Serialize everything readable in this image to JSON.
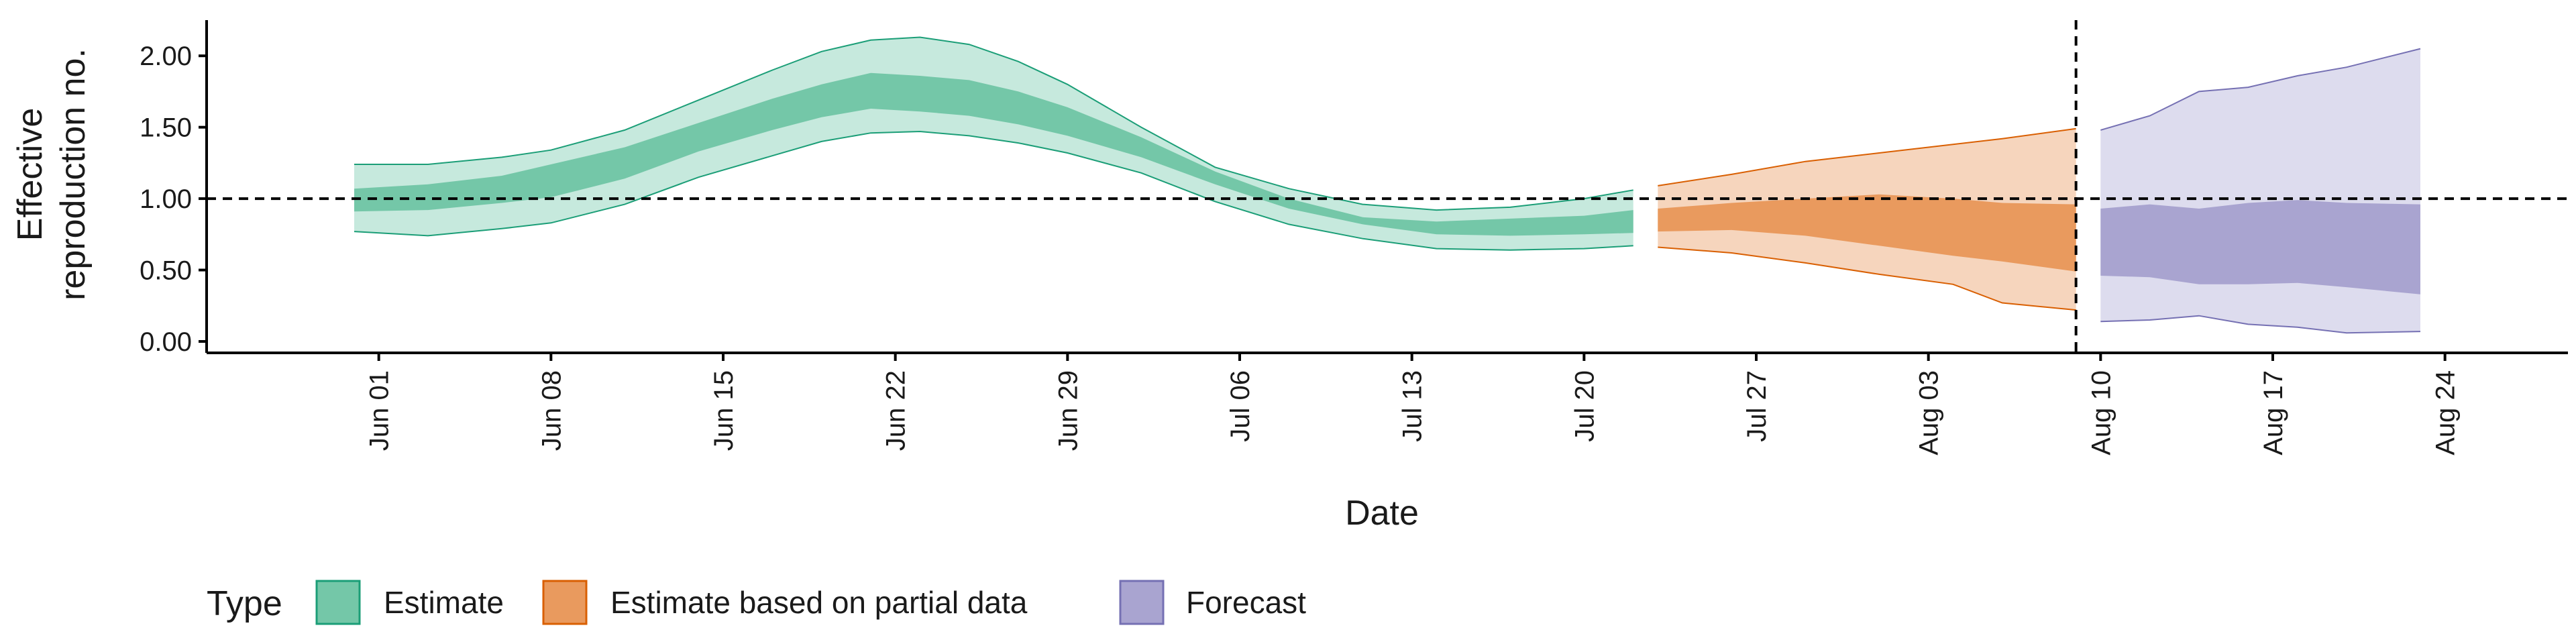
{
  "chart_data": {
    "type": "area",
    "xlabel": "Date",
    "ylabel_lines": [
      "Effective",
      "reproduction no."
    ],
    "x_ticks": [
      "Jun 01",
      "Jun 08",
      "Jun 15",
      "Jun 22",
      "Jun 29",
      "Jul 06",
      "Jul 13",
      "Jul 20",
      "Jul 27",
      "Aug 03",
      "Aug 10",
      "Aug 17",
      "Aug 24"
    ],
    "y_ticks": [
      "0.00",
      "0.50",
      "1.00",
      "1.50",
      "2.00"
    ],
    "ylim": [
      -0.08,
      2.25
    ],
    "xlim": [
      "2020-05-25",
      "2020-08-29"
    ],
    "reference_line_y": 1.0,
    "forecast_start_line": "2020-08-09",
    "legend": {
      "title": "Type",
      "position": "bottom-left",
      "items": [
        {
          "label": "Estimate",
          "fill": "#74c7a8",
          "stroke": "#1b9e77"
        },
        {
          "label": "Estimate based on partial data",
          "fill": "#e99a5e",
          "stroke": "#d95f02"
        },
        {
          "label": "Forecast",
          "fill": "#a9a4d0",
          "stroke": "#7570b3"
        }
      ]
    },
    "series": [
      {
        "name": "Estimate",
        "color": "#1b9e77",
        "outer_fill": "#c6e9dd",
        "inner_fill": "#74c7a8",
        "dates": [
          "2020-05-31",
          "2020-06-03",
          "2020-06-06",
          "2020-06-08",
          "2020-06-11",
          "2020-06-14",
          "2020-06-17",
          "2020-06-19",
          "2020-06-21",
          "2020-06-23",
          "2020-06-25",
          "2020-06-27",
          "2020-06-29",
          "2020-07-02",
          "2020-07-05",
          "2020-07-08",
          "2020-07-11",
          "2020-07-14",
          "2020-07-17",
          "2020-07-20",
          "2020-07-22"
        ],
        "lower_90": [
          0.77,
          0.74,
          0.79,
          0.83,
          0.96,
          1.15,
          1.3,
          1.4,
          1.46,
          1.47,
          1.44,
          1.39,
          1.32,
          1.18,
          0.98,
          0.82,
          0.72,
          0.65,
          0.64,
          0.65,
          0.67
        ],
        "lower_50": [
          0.91,
          0.92,
          0.97,
          1.01,
          1.14,
          1.33,
          1.48,
          1.57,
          1.63,
          1.61,
          1.58,
          1.52,
          1.44,
          1.29,
          1.1,
          0.93,
          0.82,
          0.75,
          0.74,
          0.75,
          0.76
        ],
        "upper_50": [
          1.07,
          1.1,
          1.16,
          1.24,
          1.36,
          1.53,
          1.7,
          1.8,
          1.88,
          1.86,
          1.83,
          1.75,
          1.64,
          1.43,
          1.19,
          1.0,
          0.87,
          0.84,
          0.86,
          0.88,
          0.92
        ],
        "upper_90": [
          1.24,
          1.24,
          1.29,
          1.34,
          1.48,
          1.69,
          1.9,
          2.03,
          2.11,
          2.13,
          2.08,
          1.96,
          1.8,
          1.5,
          1.22,
          1.07,
          0.96,
          0.92,
          0.94,
          1.0,
          1.06
        ]
      },
      {
        "name": "Estimate based on partial data",
        "color": "#d95f02",
        "outer_fill": "#f6d5bd",
        "inner_fill": "#e99a5e",
        "dates": [
          "2020-07-23",
          "2020-07-26",
          "2020-07-29",
          "2020-08-01",
          "2020-08-04",
          "2020-08-06",
          "2020-08-09"
        ],
        "lower_90": [
          0.66,
          0.62,
          0.55,
          0.47,
          0.4,
          0.27,
          0.22
        ],
        "lower_50": [
          0.77,
          0.78,
          0.74,
          0.67,
          0.6,
          0.56,
          0.49
        ],
        "upper_50": [
          0.93,
          0.97,
          1.0,
          1.03,
          1.0,
          0.97,
          0.96
        ],
        "upper_90": [
          1.09,
          1.17,
          1.26,
          1.32,
          1.38,
          1.42,
          1.49
        ]
      },
      {
        "name": "Forecast",
        "color": "#7570b3",
        "outer_fill": "#dddcee",
        "inner_fill": "#a9a4d0",
        "dates": [
          "2020-08-10",
          "2020-08-12",
          "2020-08-14",
          "2020-08-16",
          "2020-08-18",
          "2020-08-20",
          "2020-08-23"
        ],
        "lower_90": [
          0.14,
          0.15,
          0.18,
          0.12,
          0.1,
          0.06,
          0.07
        ],
        "lower_50": [
          0.46,
          0.45,
          0.4,
          0.4,
          0.41,
          0.38,
          0.33
        ],
        "upper_50": [
          0.93,
          0.96,
          0.93,
          0.97,
          0.99,
          0.97,
          0.96
        ],
        "upper_90": [
          1.48,
          1.58,
          1.75,
          1.78,
          1.86,
          1.92,
          2.05
        ]
      }
    ]
  }
}
